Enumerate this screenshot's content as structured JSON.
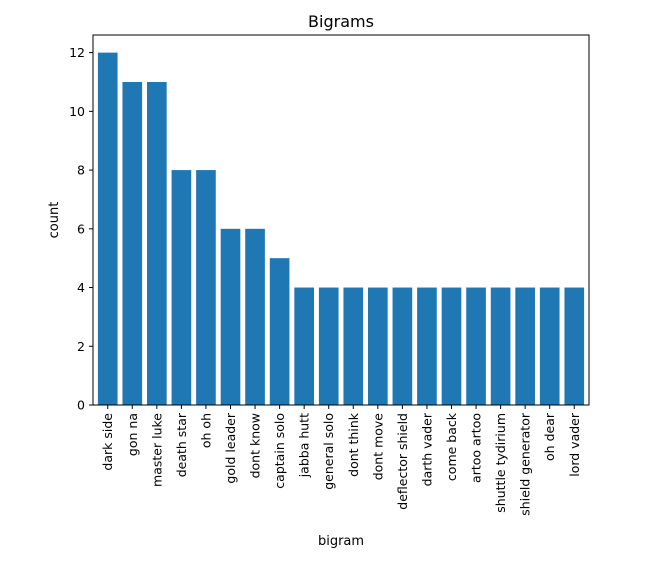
{
  "chart_data": {
    "type": "bar",
    "title": "Bigrams",
    "xlabel": "bigram",
    "ylabel": "count",
    "categories": [
      "dark side",
      "gon na",
      "master luke",
      "death star",
      "oh oh",
      "gold leader",
      "dont know",
      "captain solo",
      "jabba hutt",
      "general solo",
      "dont think",
      "dont move",
      "deflector shield",
      "darth vader",
      "come back",
      "artoo artoo",
      "shuttle tydirium",
      "shield generator",
      "oh dear",
      "lord vader"
    ],
    "values": [
      12,
      11,
      11,
      8,
      8,
      6,
      6,
      5,
      4,
      4,
      4,
      4,
      4,
      4,
      4,
      4,
      4,
      4,
      4,
      4
    ],
    "ylim": [
      0,
      12.6
    ],
    "yticks": [
      0,
      2,
      4,
      6,
      8,
      10,
      12
    ],
    "grid": false,
    "bar_color": "#1f77b4"
  }
}
